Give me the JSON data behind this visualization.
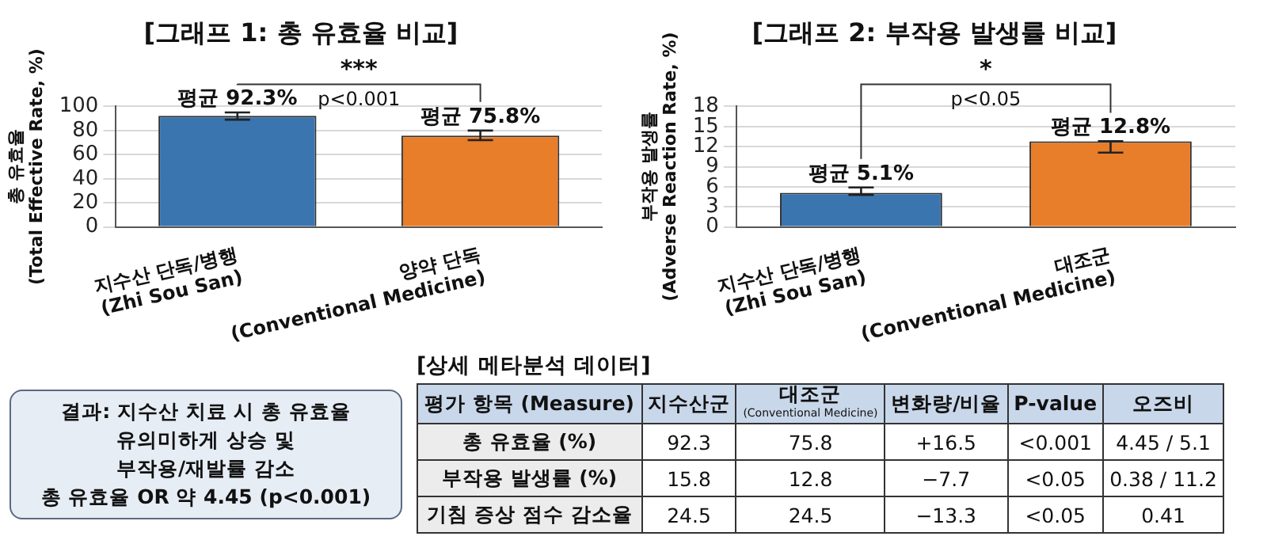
{
  "chart_data": [
    {
      "type": "bar",
      "title": "[그래프 1: 총 유효율 비교]",
      "ylabel": "총 유효율\n(Total Effective Rate, %)",
      "categories": [
        "지수산 단독/병행\n(Zhi Sou San)",
        "양약 단독\n(Conventional Medicine)"
      ],
      "values": [
        92.3,
        75.8
      ],
      "colors": [
        "#3a75b0",
        "#e87d2a"
      ],
      "errors": [
        [
          89,
          95
        ],
        [
          72,
          80
        ]
      ],
      "value_labels": [
        "평균 92.3%",
        "평균 75.8%"
      ],
      "ylim": [
        0,
        100
      ],
      "yticks": [
        0,
        20,
        40,
        60,
        80,
        100
      ],
      "grid": "y",
      "legend": false,
      "annotations": [
        "***",
        "p<0.001"
      ]
    },
    {
      "type": "bar",
      "title": "[그래프 2: 부작용 발생률 비교]",
      "ylabel": "부작용 발생률\n(Adverse Reaction Rate, %)",
      "categories": [
        "지수산 단독/병행\n(Zhi Sou San)",
        "대조군\n(Conventional Medicine)"
      ],
      "values": [
        5.1,
        12.8
      ],
      "colors": [
        "#3a75b0",
        "#e87d2a"
      ],
      "errors": [
        [
          4.8,
          5.9
        ],
        [
          11.1,
          12.8
        ]
      ],
      "value_labels": [
        "평균 5.1%",
        "평균 12.8%"
      ],
      "ylim": [
        0,
        18
      ],
      "yticks": [
        0,
        3,
        6,
        9,
        12,
        15,
        18
      ],
      "grid": "y",
      "legend": false,
      "annotations": [
        "*",
        "p<0.05"
      ]
    },
    {
      "type": "other",
      "annotations": [
        "결과: 지수산 치료 시 총 유효율",
        "유의미하게 상승 및",
        "부작용/재발률 감소",
        "총 유효율 OR 약 4.45 (p<0.001)"
      ]
    },
    {
      "type": "other",
      "title": "[상세 메타분석 데이터]",
      "categories": [
        "평가 항목 (Measure)",
        "지수산군",
        "대조군\n(Conventional Medicine)",
        "변화량/비율",
        "P-value",
        "오즈비"
      ],
      "y_categories": [
        "총 유효율 (%)",
        "부작용 발생률 (%)",
        "기침 증상 점수 감소율"
      ],
      "cell_labels": [
        [
          "92.3",
          "75.8",
          "+16.5",
          "<0.001",
          "4.45 / 5.1"
        ],
        [
          "15.8",
          "12.8",
          "−7.7",
          "<0.05",
          "0.38 / 11.2"
        ],
        [
          "24.5",
          "24.5",
          "−13.3",
          "<0.05",
          "0.41"
        ]
      ]
    }
  ]
}
